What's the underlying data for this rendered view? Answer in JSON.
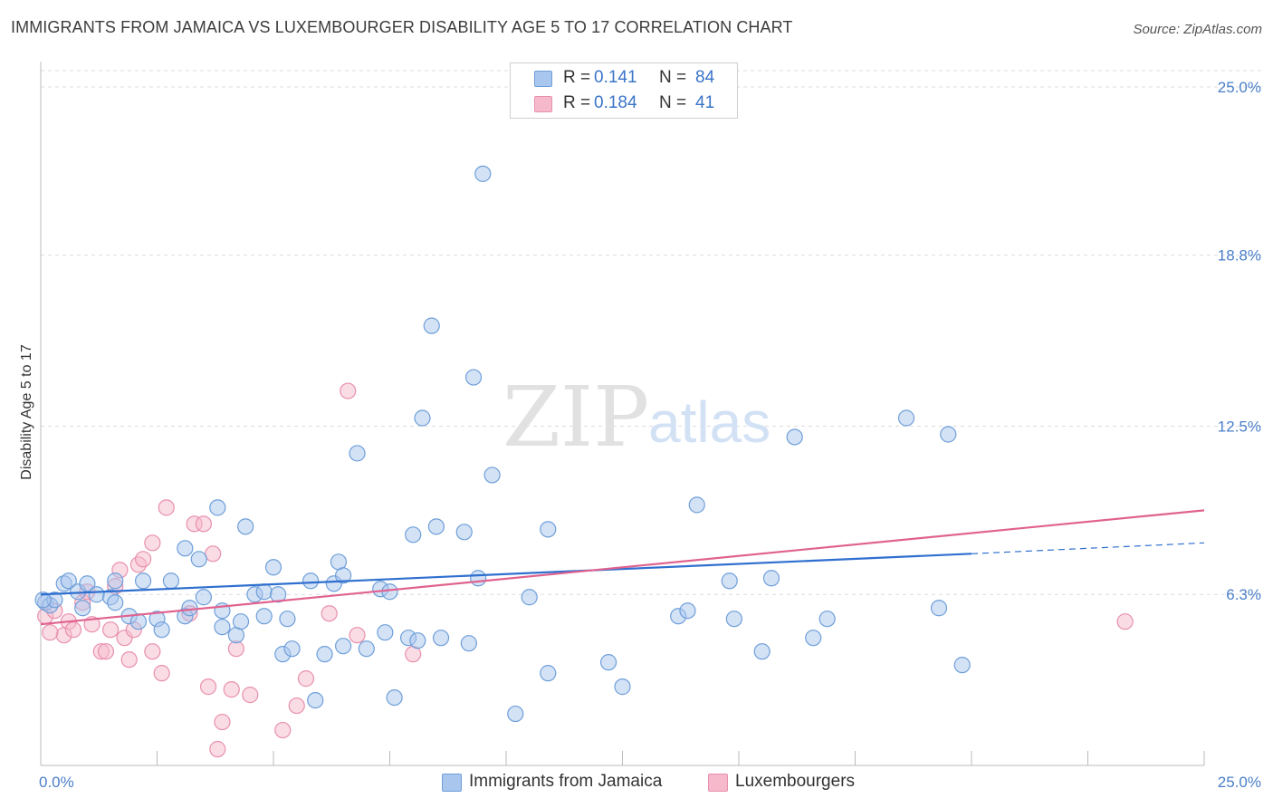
{
  "header": {
    "title": "IMMIGRANTS FROM JAMAICA VS LUXEMBOURGER DISABILITY AGE 5 TO 17 CORRELATION CHART",
    "source": "Source: ZipAtlas.com"
  },
  "watermark": {
    "zip": "ZIP",
    "atlas": "atlas"
  },
  "legend": {
    "rows": [
      {
        "r_label": "R =",
        "r_value": "0.141",
        "n_label": "N =",
        "n_value": "84"
      },
      {
        "r_label": "R =",
        "r_value": "0.184",
        "n_label": "N =",
        "n_value": "41"
      }
    ]
  },
  "bottom_legend": {
    "jamaica": "Immigrants from Jamaica",
    "lux": "Luxembourgers"
  },
  "colors": {
    "jamaica_fill": "#a9c6ee",
    "jamaica_stroke": "#6e9fd9",
    "jamaica_line": "#2f6fcf",
    "lux_fill": "#f6b9cc",
    "lux_stroke": "#e890ad",
    "lux_line": "#e0628f",
    "grid": "#dcdcdc",
    "tick_text": "#4a7fc9"
  },
  "chart_data": {
    "type": "scatter",
    "title": "IMMIGRANTS FROM JAMAICA VS LUXEMBOURGER DISABILITY AGE 5 TO 17 CORRELATION CHART",
    "xlabel": "",
    "ylabel": "Disability Age 5 to 17",
    "xlim": [
      0,
      25
    ],
    "ylim": [
      0,
      25.6
    ],
    "x_tick_labels": [
      "0.0%",
      "25.0%"
    ],
    "y_ticks": [
      6.3,
      12.5,
      18.8,
      25.0
    ],
    "y_tick_labels": [
      "6.3%",
      "12.5%",
      "18.8%",
      "25.0%"
    ],
    "grid": "horizontal dashed",
    "legend_position": "top-center",
    "series": [
      {
        "name": "Immigrants from Jamaica",
        "r": 0.141,
        "n": 84,
        "trend": {
          "x": [
            0,
            20
          ],
          "y": [
            6.3,
            7.8
          ],
          "dashed_extension": {
            "x": [
              20,
              25
            ],
            "y": [
              7.8,
              8.2
            ]
          }
        },
        "points": [
          [
            0.1,
            6.0
          ],
          [
            0.2,
            5.9
          ],
          [
            0.3,
            6.1
          ],
          [
            0.5,
            6.7
          ],
          [
            0.6,
            6.8
          ],
          [
            0.8,
            6.4
          ],
          [
            1.0,
            6.7
          ],
          [
            1.2,
            6.3
          ],
          [
            0.9,
            5.8
          ],
          [
            1.6,
            6.8
          ],
          [
            1.5,
            6.2
          ],
          [
            1.6,
            6.0
          ],
          [
            1.9,
            5.5
          ],
          [
            2.1,
            5.3
          ],
          [
            2.2,
            6.8
          ],
          [
            2.5,
            5.4
          ],
          [
            2.6,
            5.0
          ],
          [
            2.8,
            6.8
          ],
          [
            3.1,
            5.5
          ],
          [
            3.1,
            8.0
          ],
          [
            3.2,
            5.8
          ],
          [
            3.4,
            7.6
          ],
          [
            3.5,
            6.2
          ],
          [
            3.8,
            9.5
          ],
          [
            3.9,
            5.7
          ],
          [
            3.9,
            5.1
          ],
          [
            4.2,
            4.8
          ],
          [
            4.3,
            5.3
          ],
          [
            4.4,
            8.8
          ],
          [
            4.6,
            6.3
          ],
          [
            4.8,
            5.5
          ],
          [
            4.8,
            6.4
          ],
          [
            5.0,
            7.3
          ],
          [
            5.1,
            6.3
          ],
          [
            5.2,
            4.1
          ],
          [
            5.3,
            5.4
          ],
          [
            5.4,
            4.3
          ],
          [
            5.8,
            6.8
          ],
          [
            5.9,
            2.4
          ],
          [
            6.1,
            4.1
          ],
          [
            6.3,
            6.7
          ],
          [
            6.4,
            7.5
          ],
          [
            6.5,
            4.4
          ],
          [
            6.5,
            7.0
          ],
          [
            6.8,
            11.5
          ],
          [
            7.0,
            4.3
          ],
          [
            7.3,
            6.5
          ],
          [
            7.4,
            4.9
          ],
          [
            7.5,
            6.4
          ],
          [
            7.6,
            2.5
          ],
          [
            7.9,
            4.7
          ],
          [
            8.0,
            8.5
          ],
          [
            8.1,
            4.6
          ],
          [
            8.2,
            12.8
          ],
          [
            8.4,
            16.2
          ],
          [
            8.5,
            8.8
          ],
          [
            8.6,
            4.7
          ],
          [
            9.1,
            8.6
          ],
          [
            9.2,
            4.5
          ],
          [
            9.3,
            14.3
          ],
          [
            9.4,
            6.9
          ],
          [
            9.7,
            10.7
          ],
          [
            9.5,
            21.8
          ],
          [
            10.2,
            1.9
          ],
          [
            10.5,
            6.2
          ],
          [
            10.9,
            3.4
          ],
          [
            10.9,
            8.7
          ],
          [
            12.2,
            3.8
          ],
          [
            12.5,
            2.9
          ],
          [
            13.7,
            5.5
          ],
          [
            13.9,
            5.7
          ],
          [
            14.1,
            9.6
          ],
          [
            14.8,
            6.8
          ],
          [
            14.9,
            5.4
          ],
          [
            15.5,
            4.2
          ],
          [
            15.7,
            6.9
          ],
          [
            16.2,
            12.1
          ],
          [
            16.6,
            4.7
          ],
          [
            16.9,
            5.4
          ],
          [
            18.6,
            12.8
          ],
          [
            19.3,
            5.8
          ],
          [
            19.5,
            12.2
          ],
          [
            19.8,
            3.7
          ],
          [
            0.05,
            6.1
          ]
        ]
      },
      {
        "name": "Luxembourgers",
        "r": 0.184,
        "n": 41,
        "trend": {
          "x": [
            0,
            25
          ],
          "y": [
            5.2,
            9.4
          ]
        },
        "points": [
          [
            0.1,
            5.5
          ],
          [
            0.3,
            5.7
          ],
          [
            0.5,
            4.8
          ],
          [
            0.6,
            5.3
          ],
          [
            0.7,
            5.0
          ],
          [
            0.9,
            6.0
          ],
          [
            1.1,
            5.2
          ],
          [
            1.3,
            4.2
          ],
          [
            1.4,
            4.2
          ],
          [
            1.5,
            5.0
          ],
          [
            1.6,
            6.6
          ],
          [
            1.7,
            7.2
          ],
          [
            1.8,
            4.7
          ],
          [
            1.9,
            3.9
          ],
          [
            2.1,
            7.4
          ],
          [
            2.2,
            7.6
          ],
          [
            2.4,
            8.2
          ],
          [
            2.4,
            4.2
          ],
          [
            2.6,
            3.4
          ],
          [
            2.7,
            9.5
          ],
          [
            3.2,
            5.6
          ],
          [
            3.3,
            8.9
          ],
          [
            3.5,
            8.9
          ],
          [
            3.6,
            2.9
          ],
          [
            3.7,
            7.8
          ],
          [
            3.8,
            0.6
          ],
          [
            3.9,
            1.6
          ],
          [
            4.1,
            2.8
          ],
          [
            4.2,
            4.3
          ],
          [
            4.5,
            2.6
          ],
          [
            5.2,
            1.3
          ],
          [
            5.5,
            2.2
          ],
          [
            5.7,
            3.2
          ],
          [
            6.2,
            5.6
          ],
          [
            6.6,
            13.8
          ],
          [
            6.8,
            4.8
          ],
          [
            8.0,
            4.1
          ],
          [
            23.3,
            5.3
          ],
          [
            0.2,
            4.9
          ],
          [
            1.0,
            6.4
          ],
          [
            2.0,
            5.0
          ]
        ]
      }
    ]
  }
}
